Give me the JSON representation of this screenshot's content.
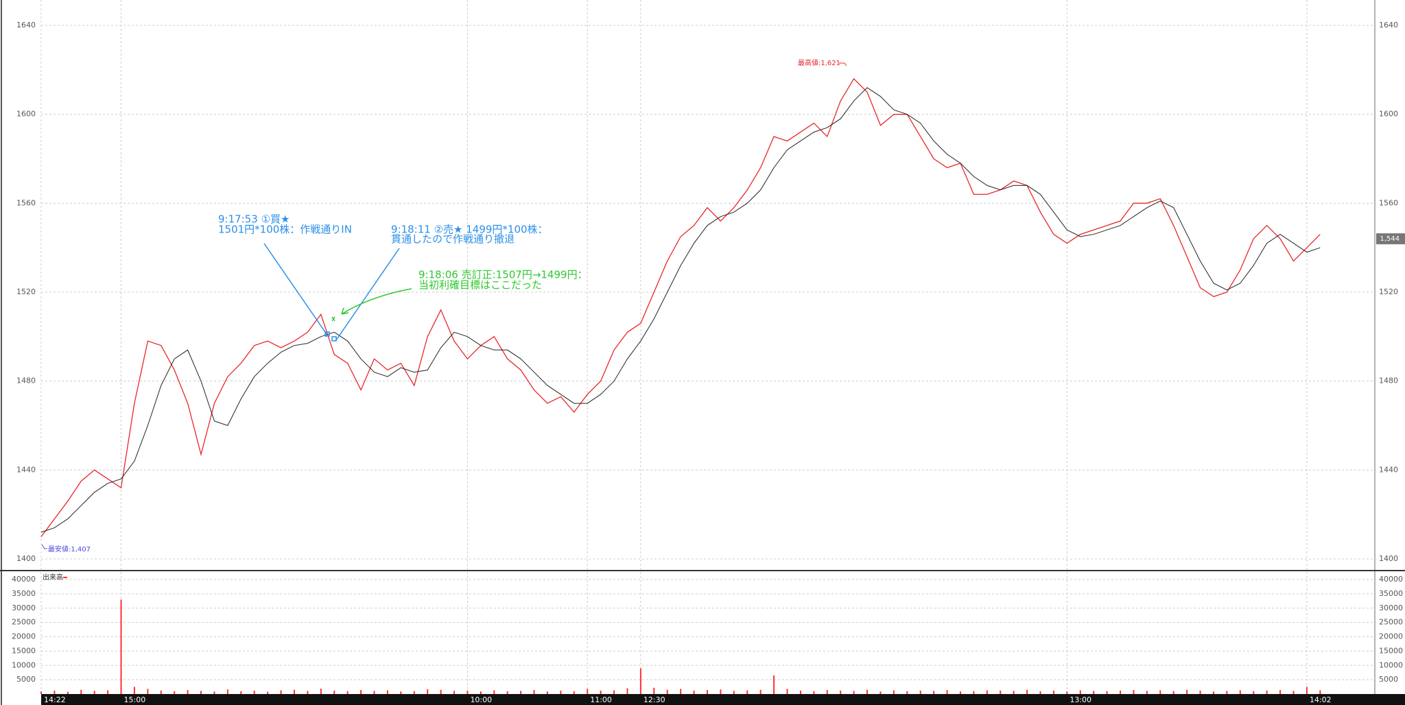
{
  "chart_data": [
    {
      "type": "line",
      "high_label": "最高値:1,621",
      "low_label": "最安値:1,407",
      "current_price": 1544,
      "current_price_label": "1,544",
      "annotations": [
        {
          "lines": [
            "9:17:53 ①買★",
            "1501円*100株：作戦通りIN"
          ],
          "color": "#2b8fe8"
        },
        {
          "lines": [
            "9:18:11 ②売★ 1499円*100株：",
            "貫通したので作戦通り撤退"
          ],
          "color": "#2b8fe8"
        },
        {
          "lines": [
            "9:18:06 売訂正:1507円→1499円：",
            "当初利確目標はここだった"
          ],
          "color": "#2ec82e"
        }
      ],
      "ylim": [
        1400,
        1640
      ],
      "yticks": [
        1400,
        1440,
        1480,
        1520,
        1560,
        1600,
        1640
      ],
      "grid": true,
      "series": [
        {
          "color": "#e8262a",
          "values": [
            1410,
            1418,
            1426,
            1435,
            1440,
            1436,
            1432,
            1470,
            1498,
            1496,
            1485,
            1470,
            1447,
            1470,
            1482,
            1488,
            1496,
            1498,
            1495,
            1498,
            1502,
            1510,
            1492,
            1488,
            1476,
            1490,
            1485,
            1488,
            1478,
            1500,
            1512,
            1498,
            1490,
            1496,
            1500,
            1490,
            1485,
            1476,
            1470,
            1473,
            1466,
            1474,
            1480,
            1494,
            1502,
            1506,
            1520,
            1534,
            1545,
            1550,
            1558,
            1552,
            1558,
            1566,
            1576,
            1590,
            1588,
            1592,
            1596,
            1590,
            1606,
            1616,
            1610,
            1595,
            1600,
            1600,
            1590,
            1580,
            1576,
            1578,
            1564,
            1564,
            1566,
            1570,
            1568,
            1556,
            1546,
            1542,
            1546,
            1548,
            1550,
            1552,
            1560,
            1560,
            1562,
            1550,
            1536,
            1522,
            1518,
            1520,
            1530,
            1544,
            1550,
            1544,
            1534,
            1540,
            1546
          ]
        },
        {
          "color": "#222222",
          "values": [
            1412,
            1414,
            1418,
            1424,
            1430,
            1434,
            1436,
            1444,
            1460,
            1478,
            1490,
            1494,
            1480,
            1462,
            1460,
            1472,
            1482,
            1488,
            1493,
            1496,
            1497,
            1500,
            1502,
            1498,
            1490,
            1484,
            1482,
            1486,
            1484,
            1485,
            1495,
            1502,
            1500,
            1496,
            1494,
            1494,
            1490,
            1484,
            1478,
            1474,
            1470,
            1470,
            1474,
            1480,
            1490,
            1498,
            1508,
            1520,
            1532,
            1542,
            1550,
            1554,
            1556,
            1560,
            1566,
            1576,
            1584,
            1588,
            1592,
            1594,
            1598,
            1606,
            1612,
            1608,
            1602,
            1600,
            1596,
            1588,
            1582,
            1578,
            1572,
            1568,
            1566,
            1568,
            1568,
            1564,
            1556,
            1548,
            1545,
            1546,
            1548,
            1550,
            1554,
            1558,
            1561,
            1558,
            1546,
            1534,
            1524,
            1521,
            1524,
            1532,
            1542,
            1546,
            1542,
            1538,
            1540
          ]
        }
      ]
    },
    {
      "type": "bar",
      "legend": "出来高",
      "color": "#ff3030",
      "ylim": [
        0,
        40000
      ],
      "yticks": [
        5000,
        10000,
        15000,
        20000,
        25000,
        30000,
        35000,
        40000
      ],
      "grid": true,
      "categories": [
        "14:22",
        null,
        null,
        null,
        null,
        null,
        "15:00",
        null,
        null,
        null,
        null,
        null,
        null,
        null,
        null,
        null,
        null,
        null,
        null,
        null,
        null,
        null,
        null,
        null,
        null,
        null,
        null,
        null,
        null,
        null,
        null,
        null,
        "10:00",
        null,
        null,
        null,
        null,
        null,
        null,
        null,
        null,
        "11:00",
        null,
        null,
        null,
        "12:30",
        null,
        null,
        null,
        null,
        null,
        null,
        null,
        null,
        null,
        null,
        null,
        null,
        null,
        null,
        null,
        null,
        null,
        null,
        null,
        null,
        null,
        null,
        null,
        null,
        null,
        null,
        null,
        null,
        null,
        null,
        null,
        "13:00",
        null,
        null,
        null,
        null,
        null,
        null,
        null,
        null,
        null,
        null,
        null,
        null,
        null,
        null,
        null,
        null,
        null,
        "14:02",
        null
      ],
      "values": [
        900,
        1200,
        800,
        1500,
        1100,
        1300,
        33000,
        2500,
        1800,
        1200,
        1000,
        1400,
        1100,
        900,
        1600,
        1000,
        1200,
        800,
        1300,
        1500,
        1100,
        1900,
        1200,
        1000,
        1400,
        1100,
        1300,
        900,
        1000,
        1700,
        1500,
        1100,
        1200,
        900,
        1300,
        1000,
        1100,
        1400,
        900,
        1200,
        1000,
        1800,
        1200,
        1300,
        2000,
        9000,
        2200,
        1500,
        1800,
        1200,
        1400,
        1600,
        1100,
        1300,
        1500,
        6500,
        1800,
        1200,
        1000,
        1400,
        1200,
        1100,
        1500,
        900,
        1300,
        1000,
        1200,
        1100,
        1400,
        900,
        1000,
        1300,
        1200,
        1100,
        1500,
        1000,
        1200,
        900,
        1300,
        1100,
        1000,
        1200,
        1400,
        1100,
        1300,
        1000,
        1500,
        1200,
        900,
        1100,
        1300,
        1000,
        1200,
        1400,
        1100,
        2500,
        1300
      ]
    }
  ]
}
